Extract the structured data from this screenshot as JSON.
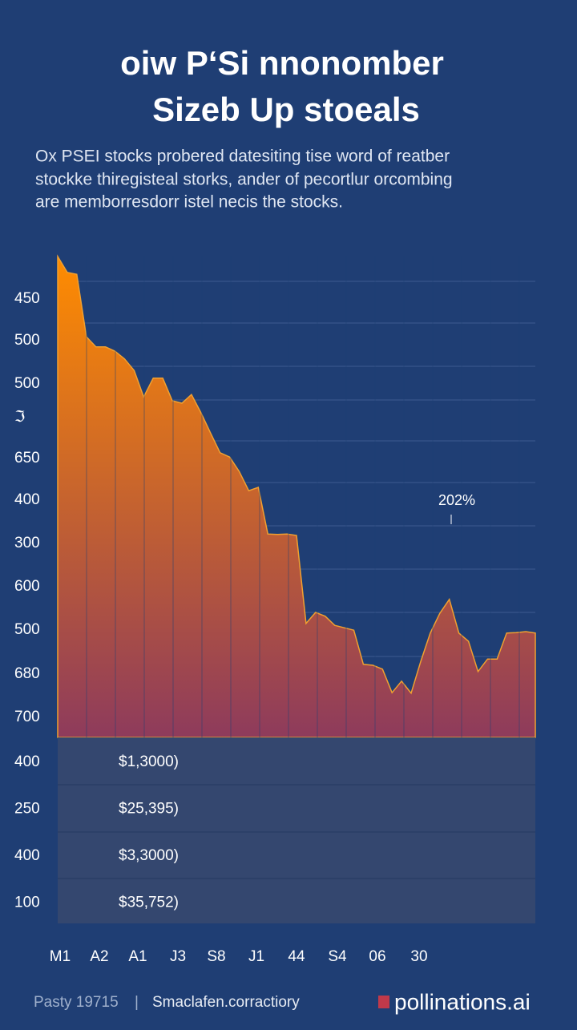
{
  "header": {
    "title_lines": [
      "oiw P‘Si nnonomber",
      "Sizeb Up stoeals"
    ],
    "subtitle_lines": [
      "Ox PSEI stocks probered datesiting tise word of reatber",
      "stockke thiregisteal storks, ander of pecortlur orcombing",
      "are memborresdorr istel necis the stocks."
    ]
  },
  "chart_data": {
    "type": "area",
    "y_labels": [
      "450",
      "500",
      "500",
      "ℑ",
      "650",
      "400",
      "300",
      "600",
      "500",
      "680",
      "700"
    ],
    "values": [
      100,
      96.7,
      96.3,
      83.3,
      81.2,
      81.2,
      80.3,
      78.7,
      76.3,
      70.8,
      74.7,
      74.7,
      70,
      69.5,
      71.3,
      67.5,
      63.3,
      59.2,
      58.3,
      55.3,
      51.3,
      52,
      42.3,
      42.2,
      42.3,
      42,
      23.7,
      26,
      25.2,
      23.3,
      22.8,
      22.3,
      15.2,
      15,
      14.2,
      9.3,
      11.7,
      9.2,
      15.8,
      21.7,
      25.8,
      28.7,
      21.7,
      20,
      13.7,
      16.3,
      16.3,
      21.7,
      21.8,
      22,
      21.7
    ],
    "ylim": [
      0,
      100
    ],
    "colors": [
      "#ff8c00",
      "#8e3b5c"
    ],
    "annotation": "202%"
  },
  "table": {
    "rows": [
      [
        "400",
        "$1,3000)"
      ],
      [
        "250",
        "$25,395)"
      ],
      [
        "400",
        "$3,3000)"
      ],
      [
        "100",
        "$35,752)"
      ]
    ]
  },
  "x_labels": [
    "M1",
    "A2",
    "A1",
    "J3",
    "S8",
    "J1",
    "44",
    "S4",
    "06",
    "30"
  ],
  "footer": {
    "left": "Pasty 19715",
    "separator": "|",
    "middle": "Smaclafen.corractiory",
    "right": "pollinations.ai"
  }
}
